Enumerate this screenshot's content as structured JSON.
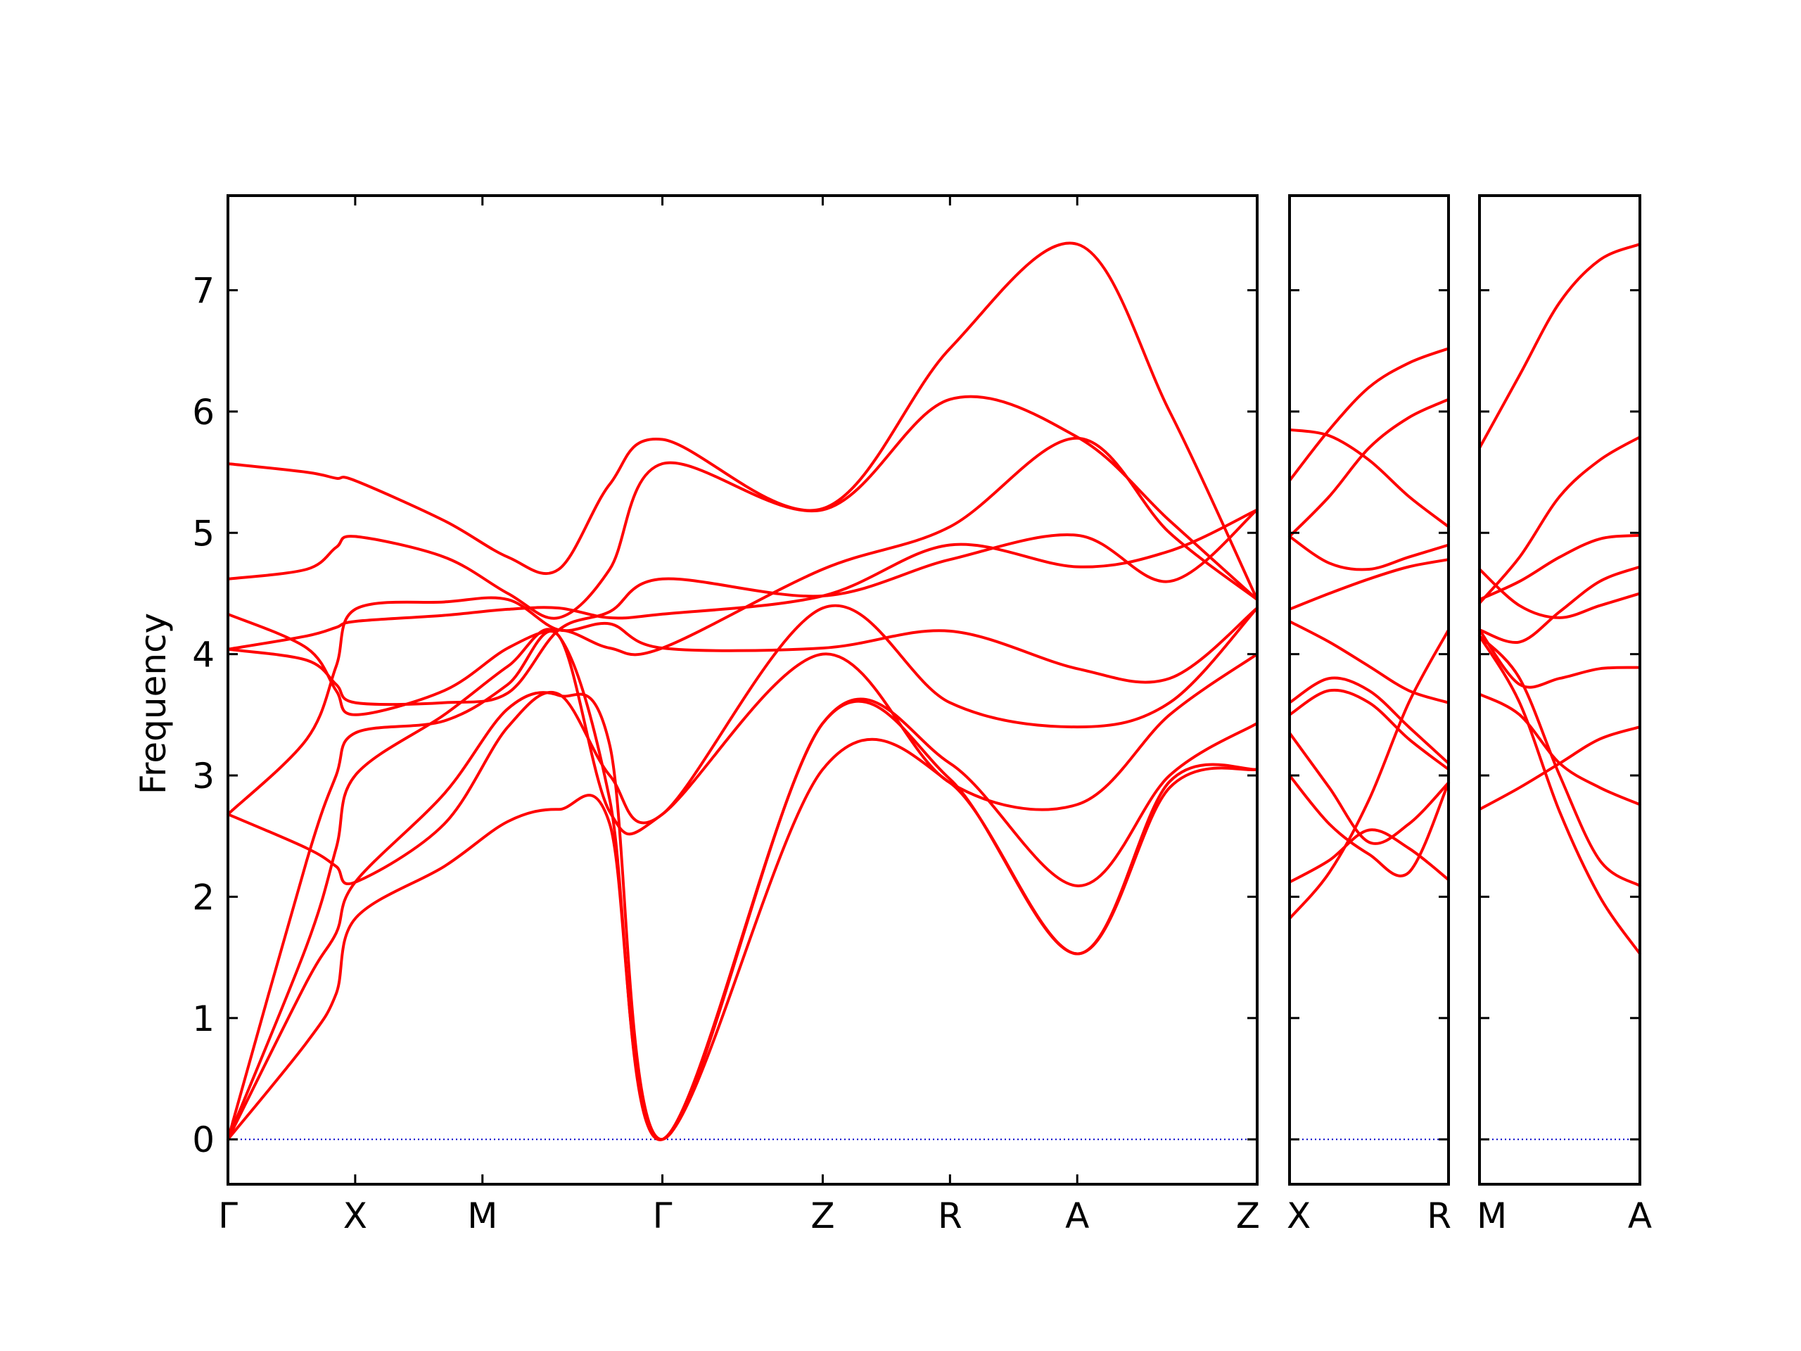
{
  "chart_data": {
    "type": "line",
    "ylabel": "Frequency",
    "ylim": [
      -0.37,
      7.78
    ],
    "yticks": [
      0,
      1,
      2,
      3,
      4,
      5,
      6,
      7
    ],
    "grid": false,
    "legend": "none",
    "band_color": "#ff0000",
    "zero_line_color": "#0000cc",
    "panels": [
      {
        "segments": [
          "Γ-X",
          "X-M",
          "M-Γ",
          "Γ-Z",
          "Z-R",
          "R-A",
          "A-Z"
        ],
        "segment_lengths": [
          1,
          1,
          1.414,
          1.26,
          1,
          1,
          1.414
        ],
        "tick_labels": [
          "Γ",
          "X",
          "M",
          "Γ",
          "Z",
          "R",
          "A",
          "Z"
        ],
        "band_points": [
          [
            0,
            0.62,
            0.85,
            1,
            1.7,
            2.2,
            2.6,
            3.0,
            3.414,
            4.674,
            5.674,
            6.674,
            7.4,
            8.088
          ],
          [
            [
              0,
              0.8,
              1.2,
              1.82,
              2.25,
              2.62,
              2.72,
              2.6,
              0,
              3.05,
              2.94,
              1.53,
              2.9,
              3.05
            ],
            [
              0,
              1.3,
              1.7,
              2.12,
              2.85,
              3.55,
              3.66,
              3.25,
              0,
              3.43,
              2.97,
              1.53,
              2.95,
              3.05
            ],
            [
              0,
              1.6,
              2.4,
              3.0,
              3.5,
              3.9,
              4.15,
              2.8,
              0,
              3.43,
              3.1,
              2.09,
              3.0,
              3.43
            ],
            [
              0,
              2.3,
              3.0,
              3.35,
              3.45,
              3.75,
              4.15,
              2.7,
              2.68,
              4.0,
              2.94,
              2.76,
              3.5,
              4.0
            ],
            [
              2.68,
              2.4,
              2.25,
              2.12,
              2.6,
              3.4,
              3.67,
              3.0,
              2.68,
              4.38,
              3.6,
              3.4,
              3.6,
              4.38
            ],
            [
              2.68,
              3.3,
              3.9,
              4.37,
              4.43,
              4.45,
              4.2,
              4.25,
              4.05,
              4.05,
              4.19,
              3.88,
              3.8,
              4.38
            ],
            [
              4.04,
              3.95,
              3.75,
              3.6,
              3.6,
              3.68,
              4.2,
              4.35,
              4.62,
              4.48,
              4.78,
              4.98,
              4.6,
              5.19
            ],
            [
              4.04,
              4.15,
              4.22,
              4.27,
              4.32,
              4.37,
              4.38,
              4.3,
              4.33,
              4.48,
              4.9,
              4.72,
              4.85,
              5.19
            ],
            [
              4.33,
              4.05,
              3.7,
              3.5,
              3.7,
              4.05,
              4.2,
              4.05,
              4.05,
              4.7,
              5.05,
              5.78,
              5.0,
              4.45
            ],
            [
              4.62,
              4.7,
              4.88,
              4.97,
              4.8,
              4.5,
              4.3,
              4.7,
              5.57,
              5.19,
              6.1,
              5.79,
              5.1,
              4.45
            ],
            [
              5.57,
              5.5,
              5.45,
              5.43,
              5.1,
              4.8,
              4.7,
              5.4,
              5.77,
              5.2,
              6.52,
              7.38,
              6.0,
              4.45
            ]
          ]
        ]
      },
      {
        "segments": [
          "X-R"
        ],
        "segment_lengths": [
          1
        ],
        "tick_labels": [
          "X",
          "R"
        ],
        "band_points": [
          [
            0,
            0.25,
            0.5,
            0.75,
            1
          ],
          [
            [
              1.82,
              2.2,
              2.8,
              3.6,
              4.2
            ],
            [
              2.12,
              2.3,
              2.55,
              2.4,
              2.14
            ],
            [
              3.0,
              2.6,
              2.35,
              2.2,
              2.94
            ],
            [
              3.35,
              2.9,
              2.45,
              2.6,
              2.94
            ],
            [
              3.5,
              3.7,
              3.6,
              3.3,
              3.05
            ],
            [
              3.6,
              3.8,
              3.7,
              3.4,
              3.1
            ],
            [
              4.27,
              4.1,
              3.9,
              3.7,
              3.6
            ],
            [
              4.37,
              4.5,
              4.62,
              4.72,
              4.78
            ],
            [
              4.97,
              4.75,
              4.7,
              4.8,
              4.9
            ],
            [
              4.97,
              5.3,
              5.7,
              5.95,
              6.1
            ],
            [
              5.43,
              5.85,
              6.2,
              6.4,
              6.52
            ],
            [
              5.85,
              5.8,
              5.6,
              5.3,
              5.05
            ]
          ]
        ]
      },
      {
        "segments": [
          "M-A"
        ],
        "segment_lengths": [
          1
        ],
        "tick_labels": [
          "M",
          "A"
        ],
        "band_points": [
          [
            0,
            0.25,
            0.5,
            0.75,
            1
          ],
          [
            [
              4.15,
              3.6,
              2.7,
              2.0,
              1.53
            ],
            [
              4.15,
              3.8,
              3.0,
              2.3,
              2.09
            ],
            [
              3.67,
              3.5,
              3.1,
              2.9,
              2.76
            ],
            [
              2.72,
              2.9,
              3.1,
              3.3,
              3.4
            ],
            [
              4.2,
              3.75,
              3.8,
              3.88,
              3.89
            ],
            [
              4.2,
              4.1,
              4.35,
              4.6,
              4.72
            ],
            [
              4.45,
              4.6,
              4.8,
              4.95,
              4.98
            ],
            [
              4.42,
              4.8,
              5.3,
              5.6,
              5.79
            ],
            [
              4.7,
              4.4,
              4.3,
              4.4,
              4.5
            ],
            [
              5.7,
              6.3,
              6.9,
              7.25,
              7.38
            ]
          ]
        ]
      }
    ]
  }
}
